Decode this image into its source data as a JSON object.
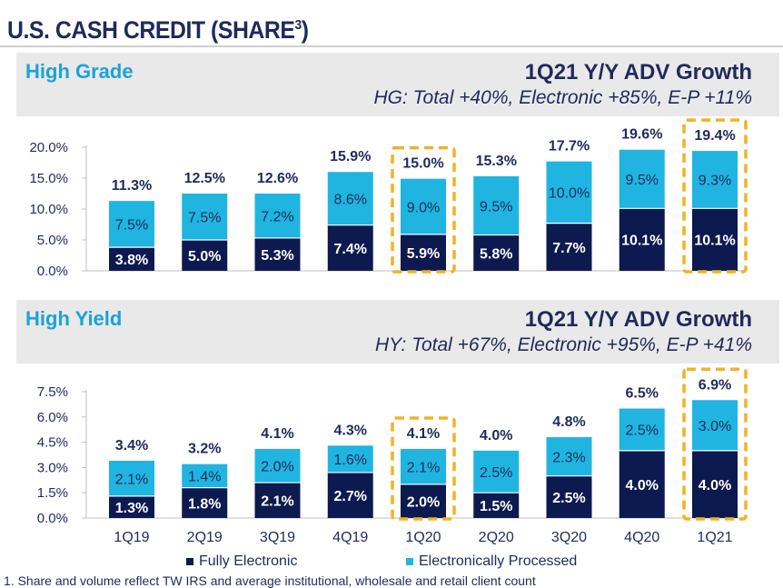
{
  "title": "U.S. CASH CREDIT (SHARE",
  "title_superscript": "3",
  "title_close": ")",
  "colors": {
    "fully_electronic": "#0d1a4f",
    "electronically_processed": "#1fb5e0",
    "highlight": "#f0b323",
    "text": "#1f2a5c",
    "label_blue": "#1aa3d8"
  },
  "hg_panel": {
    "name": "High Grade",
    "growth_title": "1Q21 Y/Y ADV Growth",
    "growth_detail": "HG: Total +40%, Electronic +85%, E-P +11%"
  },
  "hy_panel": {
    "name": "High Yield",
    "growth_title": "1Q21 Y/Y ADV Growth",
    "growth_detail": "HY: Total +67%, Electronic +95%, E-P +41%"
  },
  "legend": {
    "fully_electronic": "Fully Electronic",
    "electronically_processed": "Electronically Processed"
  },
  "footnote": "1. Share and volume reflect TW IRS and average institutional, wholesale and retail client count",
  "chart_data": [
    {
      "type": "bar",
      "stacked": true,
      "title": "High Grade",
      "categories": [
        "1Q19",
        "2Q19",
        "3Q19",
        "4Q19",
        "1Q20",
        "2Q20",
        "3Q20",
        "4Q20",
        "1Q21"
      ],
      "series": [
        {
          "name": "Fully Electronic",
          "values": [
            3.8,
            5.0,
            5.3,
            7.4,
            5.9,
            5.8,
            7.7,
            10.1,
            10.1
          ],
          "labels": [
            "3.8%",
            "5.0%",
            "5.3%",
            "7.4%",
            "5.9%",
            "5.8%",
            "7.7%",
            "10.1%",
            "10.1%"
          ]
        },
        {
          "name": "Electronically Processed",
          "values": [
            7.5,
            7.5,
            7.2,
            8.6,
            9.0,
            9.5,
            10.0,
            9.5,
            9.3
          ],
          "labels": [
            "7.5%",
            "7.5%",
            "7.2%",
            "8.6%",
            "9.0%",
            "9.5%",
            "10.0%",
            "9.5%",
            "9.3%"
          ]
        }
      ],
      "totals": [
        "11.3%",
        "12.5%",
        "12.6%",
        "15.9%",
        "15.0%",
        "15.3%",
        "17.7%",
        "19.6%",
        "19.4%"
      ],
      "ylim": [
        0,
        20
      ],
      "yticks": [
        0,
        5,
        10,
        15,
        20
      ],
      "ytick_labels": [
        "0.0%",
        "5.0%",
        "10.0%",
        "15.0%",
        "20.0%"
      ],
      "highlighted": [
        "1Q20",
        "1Q21"
      ]
    },
    {
      "type": "bar",
      "stacked": true,
      "title": "High Yield",
      "categories": [
        "1Q19",
        "2Q19",
        "3Q19",
        "4Q19",
        "1Q20",
        "2Q20",
        "3Q20",
        "4Q20",
        "1Q21"
      ],
      "series": [
        {
          "name": "Fully Electronic",
          "values": [
            1.3,
            1.8,
            2.1,
            2.7,
            2.0,
            1.5,
            2.5,
            4.0,
            4.0
          ],
          "labels": [
            "1.3%",
            "1.8%",
            "2.1%",
            "2.7%",
            "2.0%",
            "1.5%",
            "2.5%",
            "4.0%",
            "4.0%"
          ]
        },
        {
          "name": "Electronically Processed",
          "values": [
            2.1,
            1.4,
            2.0,
            1.6,
            2.1,
            2.5,
            2.3,
            2.5,
            3.0
          ],
          "labels": [
            "2.1%",
            "1.4%",
            "2.0%",
            "1.6%",
            "2.1%",
            "2.5%",
            "2.3%",
            "2.5%",
            "3.0%"
          ]
        }
      ],
      "totals": [
        "3.4%",
        "3.2%",
        "4.1%",
        "4.3%",
        "4.1%",
        "4.0%",
        "4.8%",
        "6.5%",
        "6.9%"
      ],
      "ylim": [
        0,
        7.5
      ],
      "yticks": [
        0,
        1.5,
        3.0,
        4.5,
        6.0,
        7.5
      ],
      "ytick_labels": [
        "0.0%",
        "1.5%",
        "3.0%",
        "4.5%",
        "6.0%",
        "7.5%"
      ],
      "highlighted": [
        "1Q20",
        "1Q21"
      ]
    }
  ]
}
